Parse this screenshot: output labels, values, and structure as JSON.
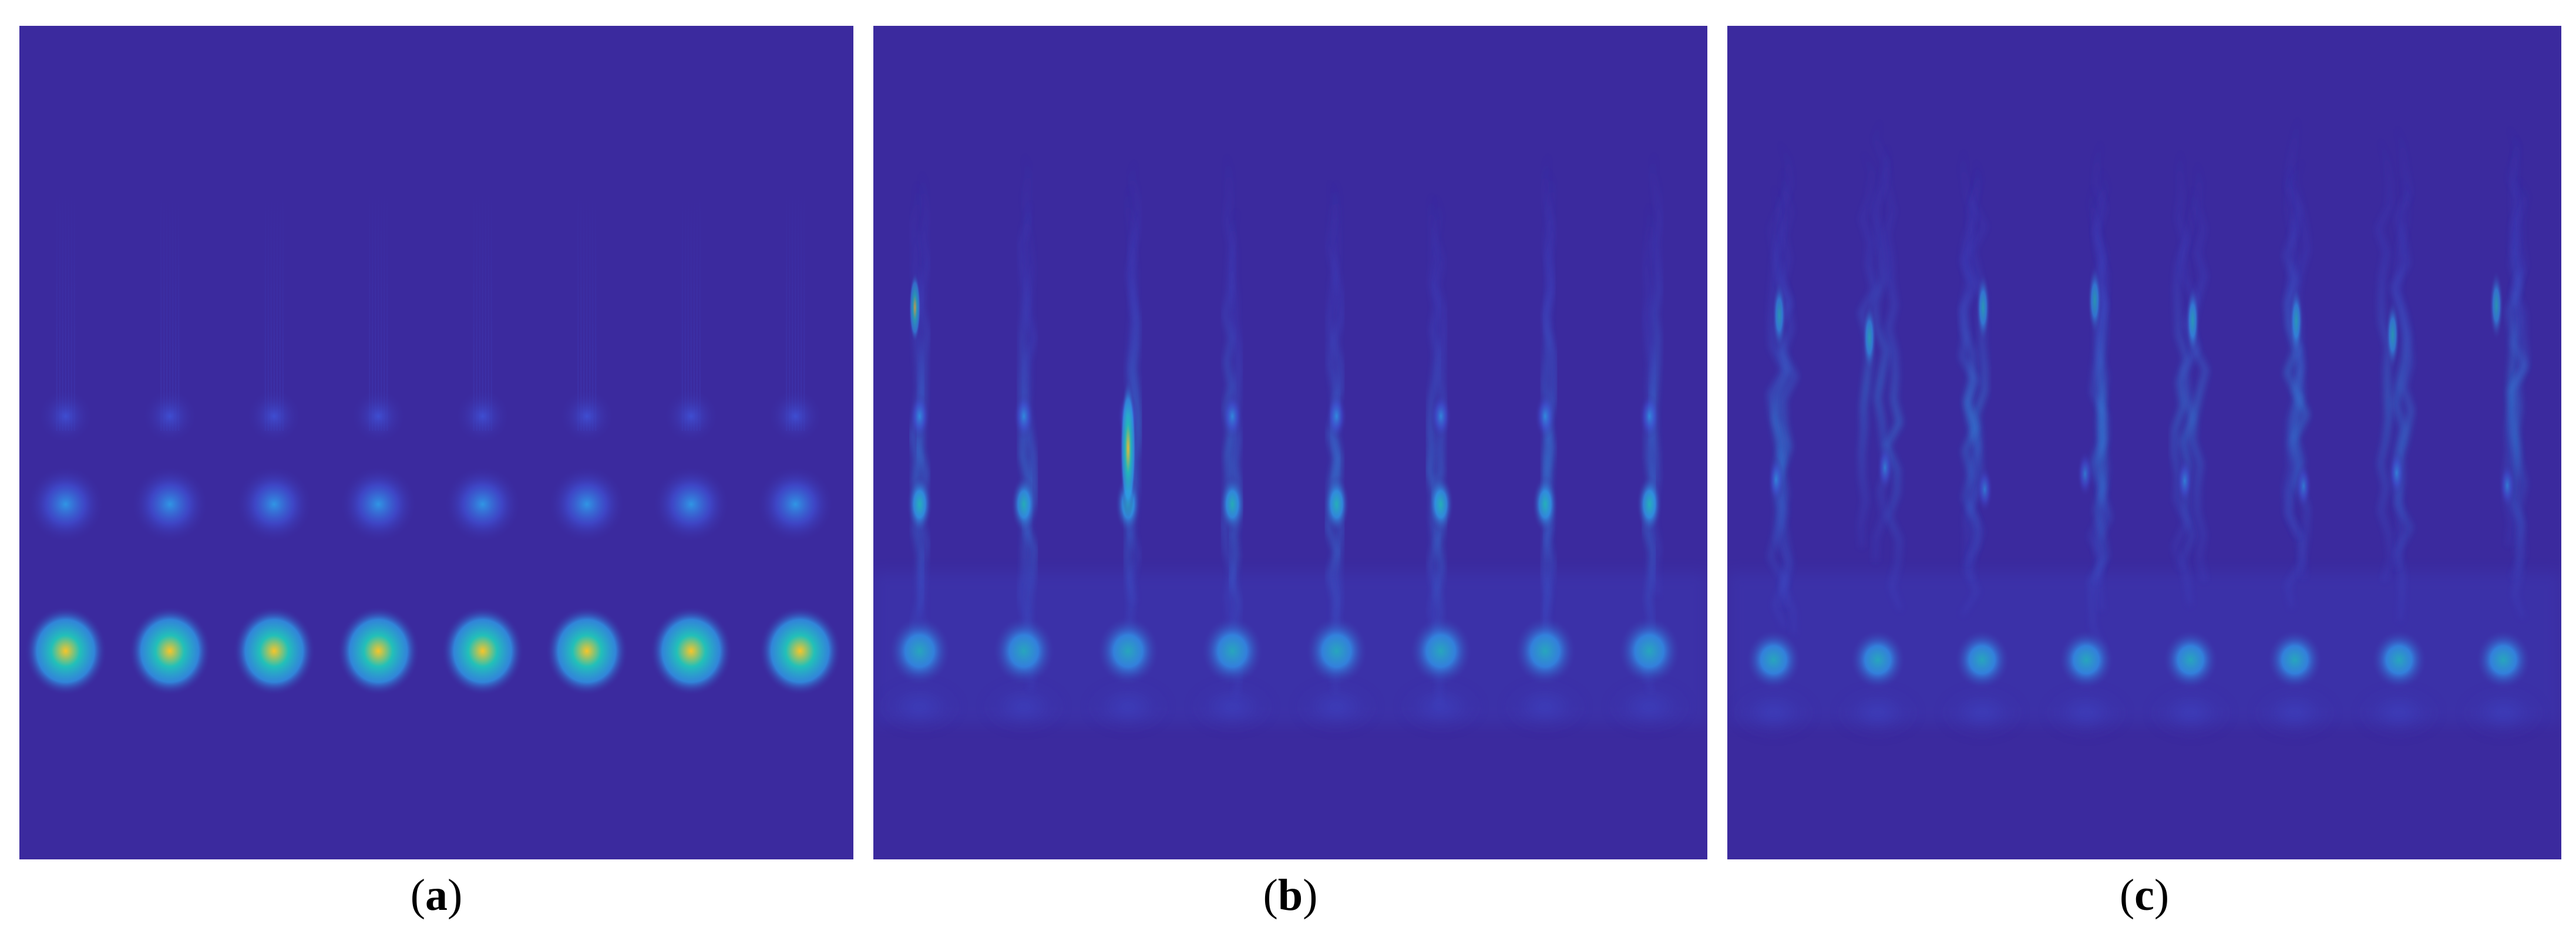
{
  "panels": [
    {
      "id": "a",
      "caption_open": "(",
      "caption_letter": "a",
      "caption_close": ")",
      "columns": 8,
      "pattern": "regular"
    },
    {
      "id": "b",
      "caption_open": "(",
      "caption_letter": "b",
      "caption_close": ")",
      "columns": 8,
      "pattern": "noisy"
    },
    {
      "id": "c",
      "caption_open": "(",
      "caption_letter": "c",
      "caption_close": ")",
      "columns": 8,
      "pattern": "very-noisy"
    }
  ],
  "colors": {
    "background": "#3b2a9e",
    "low": "#3f51d6",
    "mid": "#2f9be8",
    "high": "#22c0b8",
    "peak": "#f7c52a"
  }
}
